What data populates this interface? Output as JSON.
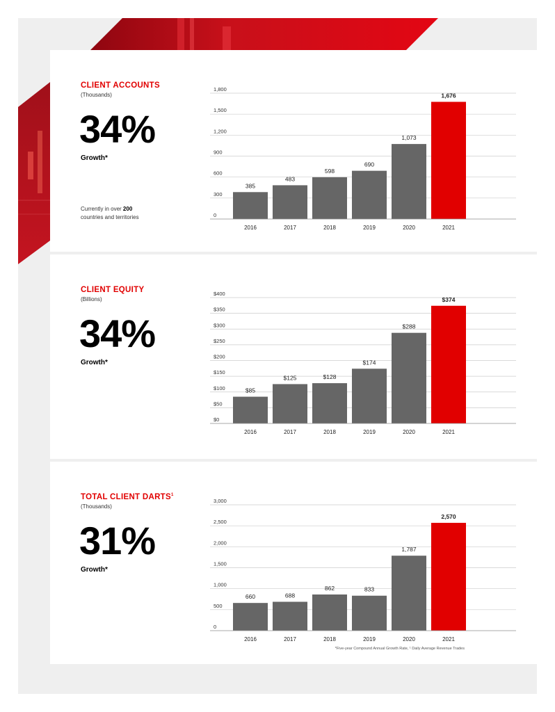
{
  "colors": {
    "accent": "#e10000",
    "bar": "#666666",
    "grid": "#cccccc",
    "background": "#efefef"
  },
  "footnote": "*Five-year Compound Annual Growth Rate, ¹ Daily Average Revenue Trades",
  "sections": [
    {
      "title": "CLIENT ACCOUNTS",
      "superscript": "",
      "unit": "(Thousands)",
      "growth_value": "34%",
      "growth_label": "Growth*",
      "note_prefix": "Currently in over ",
      "note_bold": "200",
      "note_suffix": "countries and territories"
    },
    {
      "title": "CLIENT EQUITY",
      "superscript": "",
      "unit": "(Billions)",
      "growth_value": "34%",
      "growth_label": "Growth*"
    },
    {
      "title": "TOTAL CLIENT DARTS",
      "superscript": "1",
      "unit": "(Thousands)",
      "growth_value": "31%",
      "growth_label": "Growth*"
    }
  ],
  "chart_data": [
    {
      "type": "bar",
      "categories": [
        "2016",
        "2017",
        "2018",
        "2019",
        "2020",
        "2021"
      ],
      "values": [
        385,
        483,
        598,
        690,
        1073,
        1676
      ],
      "value_labels": [
        "385",
        "483",
        "598",
        "690",
        "1,073",
        "1,676"
      ],
      "ylim": [
        0,
        1800
      ],
      "yticks": [
        0,
        300,
        600,
        900,
        1200,
        1500,
        1800
      ],
      "ytick_labels": [
        "0",
        "300",
        "600",
        "900",
        "1,200",
        "1,500",
        "1,800"
      ],
      "highlight_index": 5,
      "grid": true
    },
    {
      "type": "bar",
      "categories": [
        "2016",
        "2017",
        "2018",
        "2019",
        "2020",
        "2021"
      ],
      "values": [
        85,
        125,
        128,
        174,
        288,
        374
      ],
      "value_labels": [
        "$85",
        "$125",
        "$128",
        "$174",
        "$288",
        "$374"
      ],
      "ylim": [
        0,
        400
      ],
      "yticks": [
        0,
        50,
        100,
        150,
        200,
        250,
        300,
        350,
        400
      ],
      "ytick_labels": [
        "$0",
        "$50",
        "$100",
        "$150",
        "$200",
        "$250",
        "$300",
        "$350",
        "$400"
      ],
      "highlight_index": 5,
      "grid": true
    },
    {
      "type": "bar",
      "categories": [
        "2016",
        "2017",
        "2018",
        "2019",
        "2020",
        "2021"
      ],
      "values": [
        660,
        688,
        862,
        833,
        1787,
        2570
      ],
      "value_labels": [
        "660",
        "688",
        "862",
        "833",
        "1,787",
        "2,570"
      ],
      "ylim": [
        0,
        3000
      ],
      "yticks": [
        0,
        500,
        1000,
        1500,
        2000,
        2500,
        3000
      ],
      "ytick_labels": [
        "0",
        "500",
        "1,000",
        "1,500",
        "2,000",
        "2,500",
        "3,000"
      ],
      "highlight_index": 5,
      "grid": true
    }
  ]
}
